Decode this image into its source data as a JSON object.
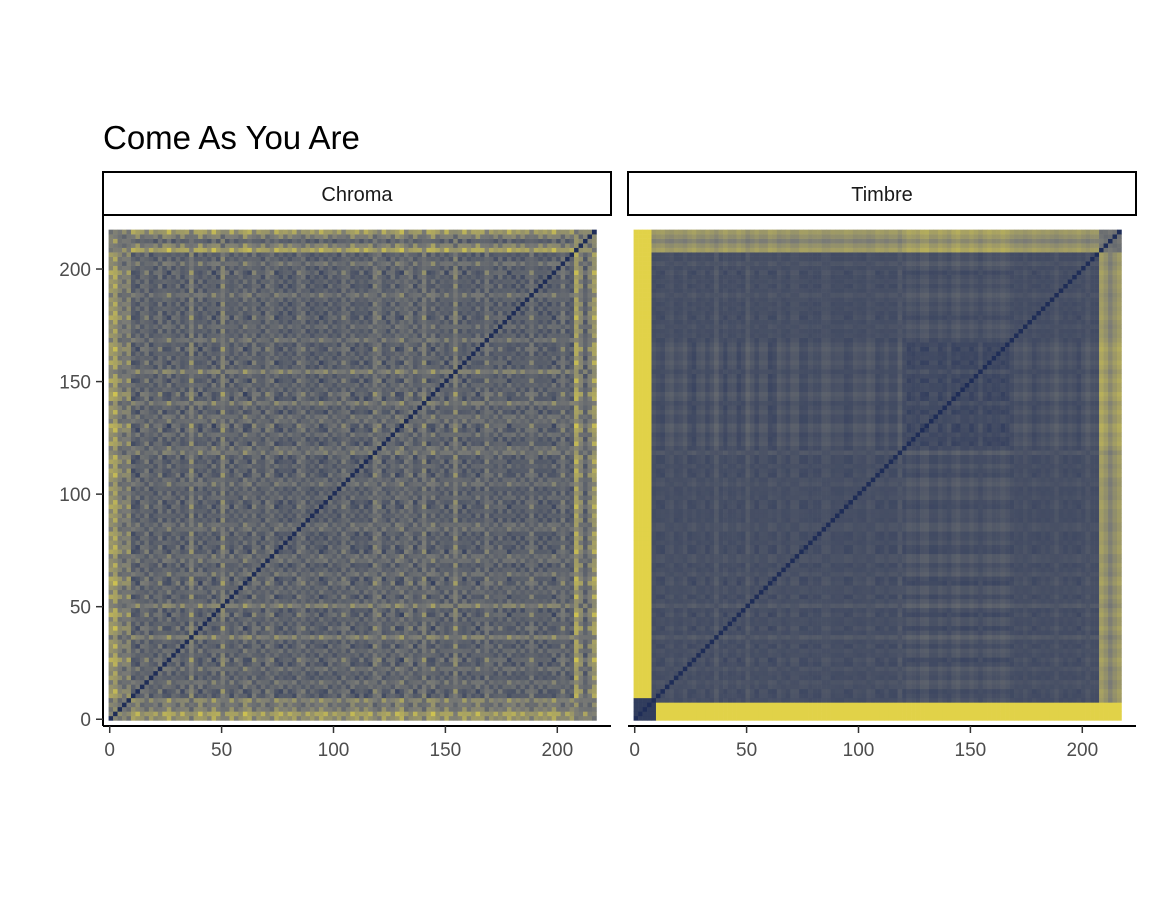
{
  "chart_data": {
    "type": "heatmap",
    "title": "Come As You Are",
    "xlabel": "",
    "ylabel": "",
    "panels": [
      {
        "name": "Chroma",
        "n_segments": 217
      },
      {
        "name": "Timbre",
        "n_segments": 217
      }
    ],
    "xlim": [
      -3,
      224
    ],
    "ylim": [
      -3,
      224
    ],
    "x_ticks": [
      0,
      50,
      100,
      150,
      200
    ],
    "y_ticks": [
      0,
      50,
      100,
      150,
      200
    ],
    "x_tick_labels": [
      "0",
      "50",
      "100",
      "150",
      "200"
    ],
    "y_tick_labels": [
      "0",
      "50",
      "100",
      "150",
      "200"
    ],
    "color_scale": {
      "low": "#1f2d57",
      "mid": "#7a7b76",
      "high": "#f5e33f"
    },
    "grid": false,
    "legend": "none"
  }
}
